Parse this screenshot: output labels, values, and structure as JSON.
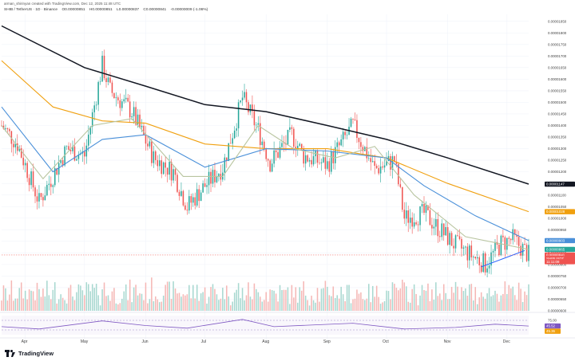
{
  "header": {
    "author_line": "arman_shirinyan created with TradingView.com, Dec 12, 2025 11:48 UTC",
    "symbol_line": "SHIB / TetherUS · 1D · Binance",
    "ohlc": [
      "O0.00000851",
      "H0.00000851",
      "L0.00000837",
      "C0.00000841",
      "-0.00000009 (-1.06%)"
    ]
  },
  "brand": {
    "name": "TradingView",
    "logo_icon": "tradingview-logo-icon"
  },
  "colors": {
    "up": "#26a69a",
    "down": "#ef5350",
    "ma200": "#131722",
    "ma100": "#f0a00f",
    "ma50": "#4a90d9",
    "ma20": "#b9c5a0",
    "rsi": "#7e57c2",
    "volume_up": "#a8d8d0",
    "volume_down": "#f5b7b5"
  },
  "chart_data": {
    "type": "candlestick",
    "symbol": "SHIB / TetherUS",
    "interval": "1D",
    "x_range": [
      "2025-03-20",
      "2025-12-12"
    ],
    "x_ticks": [
      {
        "label": "Apr",
        "date": "2025-04-01"
      },
      {
        "label": "May",
        "date": "2025-05-01"
      },
      {
        "label": "Jun",
        "date": "2025-06-01"
      },
      {
        "label": "Jul",
        "date": "2025-07-01"
      },
      {
        "label": "Aug",
        "date": "2025-08-01"
      },
      {
        "label": "Sep",
        "date": "2025-09-01"
      },
      {
        "label": "Oct",
        "date": "2025-10-01"
      },
      {
        "label": "Nov",
        "date": "2025-11-01"
      },
      {
        "label": "Dec",
        "date": "2025-12-01"
      }
    ],
    "y_range": [
      6e-06,
      1.88e-05
    ],
    "y_ticks": [
      "0.00001850",
      "0.00001800",
      "0.00001750",
      "0.00001700",
      "0.00001650",
      "0.00001600",
      "0.00001550",
      "0.00001500",
      "0.00001450",
      "0.00001400",
      "0.00001350",
      "0.00001300",
      "0.00001250",
      "0.00001200",
      "0.00001150",
      "0.00001100",
      "0.00001050",
      "0.00001000",
      "0.00000950",
      "0.00000900",
      "0.00000850",
      "0.00000800",
      "0.00000750",
      "0.00000700",
      "0.00000650",
      "0.00000600"
    ],
    "price_tags": [
      {
        "label": "0.00001147",
        "value": 1.147e-05,
        "color": "#131722"
      },
      {
        "label": "0.00001028",
        "value": 1.028e-05,
        "color": "#f0a00f"
      },
      {
        "label": "0.00000903",
        "value": 9.03e-06,
        "color": "#4a90d9"
      },
      {
        "label": "0.00000865",
        "value": 8.65e-06,
        "color": "#26a69a"
      },
      {
        "label": "0.00000841",
        "value": 8.41e-06,
        "color": "#ef5350"
      },
      {
        "label": "SHIBUSDT",
        "value": 8.26e-06,
        "color": "#ef5350"
      },
      {
        "label": "11:11:08",
        "value": 8.12e-06,
        "color": "#ef5350"
      }
    ],
    "anchor_closes": [
      {
        "date": "2025-03-20",
        "close": 1.4e-05
      },
      {
        "date": "2025-03-28",
        "close": 1.32e-05
      },
      {
        "date": "2025-04-08",
        "close": 1.07e-05
      },
      {
        "date": "2025-04-22",
        "close": 1.3e-05
      },
      {
        "date": "2025-05-01",
        "close": 1.27e-05
      },
      {
        "date": "2025-05-10",
        "close": 1.66e-05
      },
      {
        "date": "2025-05-14",
        "close": 1.55e-05
      },
      {
        "date": "2025-05-25",
        "close": 1.46e-05
      },
      {
        "date": "2025-06-05",
        "close": 1.26e-05
      },
      {
        "date": "2025-06-15",
        "close": 1.2e-05
      },
      {
        "date": "2025-06-22",
        "close": 1.05e-05
      },
      {
        "date": "2025-07-01",
        "close": 1.14e-05
      },
      {
        "date": "2025-07-10",
        "close": 1.22e-05
      },
      {
        "date": "2025-07-20",
        "close": 1.52e-05
      },
      {
        "date": "2025-07-28",
        "close": 1.38e-05
      },
      {
        "date": "2025-08-03",
        "close": 1.24e-05
      },
      {
        "date": "2025-08-14",
        "close": 1.36e-05
      },
      {
        "date": "2025-08-20",
        "close": 1.27e-05
      },
      {
        "date": "2025-09-01",
        "close": 1.23e-05
      },
      {
        "date": "2025-09-14",
        "close": 1.4e-05
      },
      {
        "date": "2025-09-25",
        "close": 1.21e-05
      },
      {
        "date": "2025-10-05",
        "close": 1.25e-05
      },
      {
        "date": "2025-10-10",
        "close": 1e-05
      },
      {
        "date": "2025-10-20",
        "close": 1.02e-05
      },
      {
        "date": "2025-11-04",
        "close": 8.9e-06
      },
      {
        "date": "2025-11-20",
        "close": 8e-06
      },
      {
        "date": "2025-11-28",
        "close": 8.9e-06
      },
      {
        "date": "2025-12-04",
        "close": 9.1e-06
      },
      {
        "date": "2025-12-12",
        "close": 8.41e-06
      }
    ],
    "moving_averages": [
      {
        "period": 200,
        "color": "#131722",
        "points": [
          [
            "2025-03-20",
            1.83e-05
          ],
          [
            "2025-05-01",
            1.65e-05
          ],
          [
            "2025-06-01",
            1.57e-05
          ],
          [
            "2025-07-01",
            1.49e-05
          ],
          [
            "2025-08-01",
            1.46e-05
          ],
          [
            "2025-09-01",
            1.4e-05
          ],
          [
            "2025-10-01",
            1.34e-05
          ],
          [
            "2025-11-01",
            1.26e-05
          ],
          [
            "2025-12-12",
            1.147e-05
          ]
        ]
      },
      {
        "period": 100,
        "color": "#f0a00f",
        "points": [
          [
            "2025-03-20",
            1.68e-05
          ],
          [
            "2025-04-15",
            1.48e-05
          ],
          [
            "2025-05-10",
            1.42e-05
          ],
          [
            "2025-06-01",
            1.41e-05
          ],
          [
            "2025-07-01",
            1.32e-05
          ],
          [
            "2025-08-01",
            1.3e-05
          ],
          [
            "2025-09-01",
            1.3e-05
          ],
          [
            "2025-10-01",
            1.26e-05
          ],
          [
            "2025-11-01",
            1.15e-05
          ],
          [
            "2025-12-12",
            1.028e-05
          ]
        ]
      },
      {
        "period": 50,
        "color": "#4a90d9",
        "points": [
          [
            "2025-03-20",
            1.48e-05
          ],
          [
            "2025-04-15",
            1.2e-05
          ],
          [
            "2025-05-10",
            1.34e-05
          ],
          [
            "2025-06-01",
            1.36e-05
          ],
          [
            "2025-07-01",
            1.22e-05
          ],
          [
            "2025-08-01",
            1.3e-05
          ],
          [
            "2025-09-01",
            1.29e-05
          ],
          [
            "2025-10-01",
            1.26e-05
          ],
          [
            "2025-10-20",
            1.14e-05
          ],
          [
            "2025-11-15",
            1.01e-05
          ],
          [
            "2025-12-12",
            9.03e-06
          ]
        ]
      },
      {
        "period": 20,
        "color": "#b9c5a0",
        "points": [
          [
            "2025-03-20",
            1.4e-05
          ],
          [
            "2025-04-10",
            1.17e-05
          ],
          [
            "2025-05-05",
            1.4e-05
          ],
          [
            "2025-05-25",
            1.43e-05
          ],
          [
            "2025-06-20",
            1.18e-05
          ],
          [
            "2025-07-10",
            1.18e-05
          ],
          [
            "2025-07-28",
            1.4e-05
          ],
          [
            "2025-08-15",
            1.3e-05
          ],
          [
            "2025-09-05",
            1.26e-05
          ],
          [
            "2025-09-25",
            1.31e-05
          ],
          [
            "2025-10-15",
            1.1e-05
          ],
          [
            "2025-11-10",
            9.2e-06
          ],
          [
            "2025-12-12",
            8.65e-06
          ]
        ]
      }
    ],
    "trendline": [
      [
        "2025-11-18",
        7.9e-06
      ],
      [
        "2025-12-10",
        8.6e-06
      ]
    ],
    "horizontal_level": 8.41e-06,
    "volume_panel": {
      "note": "daily volume bars, green up / red down"
    },
    "rsi_panel": {
      "ticks": [
        "75.00",
        "25.00"
      ],
      "range": [
        0,
        100
      ],
      "tags": [
        {
          "label": "45.52",
          "value": 45.52,
          "color": "#7e57c2"
        },
        {
          "label": "45.36",
          "value": 45.36,
          "color": "#f0a00f"
        }
      ],
      "anchor_values": [
        [
          "2025-03-20",
          42
        ],
        [
          "2025-04-08",
          30
        ],
        [
          "2025-05-10",
          72
        ],
        [
          "2025-06-01",
          48
        ],
        [
          "2025-06-22",
          34
        ],
        [
          "2025-07-20",
          80
        ],
        [
          "2025-08-05",
          42
        ],
        [
          "2025-09-14",
          60
        ],
        [
          "2025-10-10",
          30
        ],
        [
          "2025-11-05",
          38
        ],
        [
          "2025-11-25",
          55
        ],
        [
          "2025-12-12",
          45.52
        ]
      ]
    }
  }
}
